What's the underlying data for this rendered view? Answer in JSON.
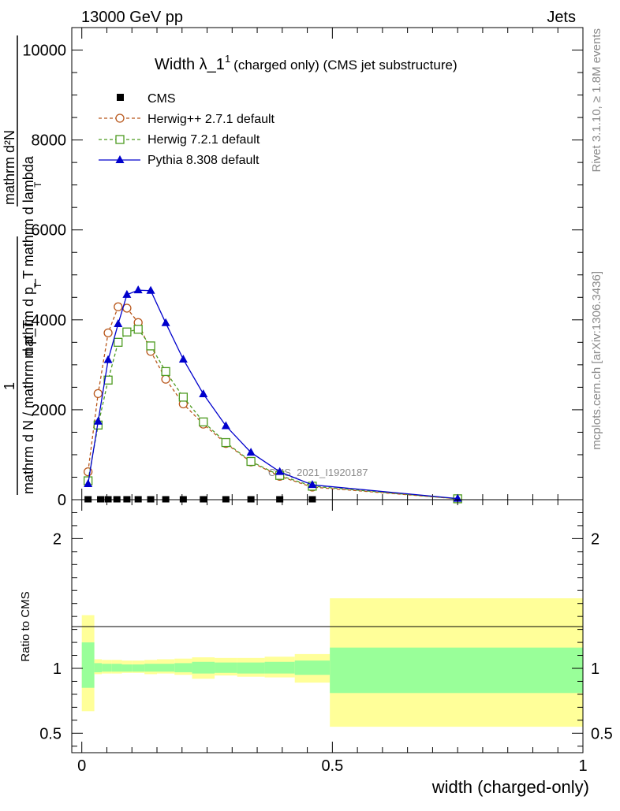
{
  "header": {
    "left": "13000 GeV pp",
    "right": "Jets",
    "side_top": "Rivet 3.1.10, ≥ 1.8M events",
    "side_bottom": "mcplots.cern.ch [arXiv:1306.3436]"
  },
  "watermark": "CMS_2021_I1920187",
  "chart_data": [
    {
      "type": "line",
      "title": "Width λ_1",
      "title_sup": "1",
      "subtitle": "(charged only) (CMS jet substructure)",
      "ylabel_lines": [
        "mathrm d²N",
        "mathrm d p_T mathrm d lambda",
        "1",
        "mathrm d N / mathrm d p_T"
      ],
      "ylabel_extra": [
        "T",
        "T"
      ],
      "xlim": [
        -0.02,
        1.0
      ],
      "ylim": [
        0,
        10500
      ],
      "yticks": [
        {
          "v": 0,
          "label": "0"
        },
        {
          "v": 2000,
          "label": "2000"
        },
        {
          "v": 4000,
          "label": "4000"
        },
        {
          "v": 6000,
          "label": "6000"
        },
        {
          "v": 8000,
          "label": "8000"
        },
        {
          "v": 10000,
          "label": "10000"
        }
      ],
      "legend": {
        "placement": "top-left",
        "entries": [
          {
            "name": "CMS",
            "color": "#000000",
            "marker": "square-filled"
          },
          {
            "name": "Herwig++ 2.7.1 default",
            "color": "#b8561a",
            "marker": "circle-open",
            "dash": true
          },
          {
            "name": "Herwig 7.2.1 default",
            "color": "#4c9a1f",
            "marker": "square-open",
            "dash": true
          },
          {
            "name": "Pythia 8.308 default",
            "color": "#0000cc",
            "marker": "triangle-filled",
            "dash": false
          }
        ]
      },
      "cms": {
        "x": [
          0.0125,
          0.0375,
          0.0525,
          0.07,
          0.09,
          0.1125,
          0.1375,
          0.1675,
          0.2025,
          0.2425,
          0.2875,
          0.3375,
          0.395,
          0.46
        ],
        "y": [
          0,
          0,
          0,
          0,
          0,
          0,
          0,
          0,
          0,
          0,
          0,
          0,
          0,
          0
        ]
      },
      "series": [
        {
          "name": "Herwig++ 2.7.1 default",
          "x": [
            0.0125,
            0.0325,
            0.0525,
            0.0725,
            0.09,
            0.1125,
            0.1375,
            0.1675,
            0.2025,
            0.2425,
            0.2875,
            0.3375,
            0.395,
            0.46,
            0.75
          ],
          "y": [
            620,
            2360,
            3710,
            4290,
            4260,
            3940,
            3300,
            2680,
            2130,
            1680,
            1250,
            840,
            520,
            280,
            20
          ]
        },
        {
          "name": "Herwig 7.2.1 default",
          "x": [
            0.0125,
            0.0325,
            0.0525,
            0.0725,
            0.09,
            0.1125,
            0.1375,
            0.1675,
            0.2025,
            0.2425,
            0.2875,
            0.3375,
            0.395,
            0.46,
            0.75
          ],
          "y": [
            420,
            1660,
            2660,
            3500,
            3730,
            3790,
            3420,
            2850,
            2280,
            1730,
            1270,
            850,
            540,
            300,
            20
          ]
        },
        {
          "name": "Pythia 8.308 default",
          "x": [
            0.0125,
            0.0325,
            0.0525,
            0.0725,
            0.09,
            0.1125,
            0.1375,
            0.1675,
            0.2025,
            0.2425,
            0.2875,
            0.3375,
            0.395,
            0.46,
            0.75
          ],
          "y": [
            350,
            1740,
            3110,
            3910,
            4560,
            4660,
            4650,
            3930,
            3120,
            2350,
            1640,
            1050,
            620,
            330,
            25
          ]
        }
      ]
    },
    {
      "type": "area",
      "ylabel": "Ratio to CMS",
      "xlabel": "width (charged-only)",
      "xlim": [
        -0.02,
        1.0
      ],
      "ylim": [
        0.35,
        2.3
      ],
      "yticks": [
        {
          "v": 0.5,
          "label": "0.5"
        },
        {
          "v": 1,
          "label": "1"
        },
        {
          "v": 2,
          "label": "2"
        }
      ],
      "xticks": [
        {
          "v": 0,
          "label": "0"
        },
        {
          "v": 0.5,
          "label": "0.5"
        },
        {
          "v": 1,
          "label": "1"
        }
      ],
      "colors": {
        "outer": "#ffff99",
        "inner": "#99ff99"
      },
      "bands": [
        {
          "x0": 0.0,
          "x1": 0.025,
          "outer": [
            0.67,
            1.41
          ],
          "inner": [
            0.85,
            1.2
          ]
        },
        {
          "x0": 0.025,
          "x1": 0.04,
          "outer": [
            0.955,
            1.07
          ],
          "inner": [
            0.97,
            1.04
          ]
        },
        {
          "x0": 0.04,
          "x1": 0.06,
          "outer": [
            0.96,
            1.065
          ],
          "inner": [
            0.975,
            1.035
          ]
        },
        {
          "x0": 0.06,
          "x1": 0.08,
          "outer": [
            0.96,
            1.065
          ],
          "inner": [
            0.975,
            1.035
          ]
        },
        {
          "x0": 0.08,
          "x1": 0.1,
          "outer": [
            0.965,
            1.06
          ],
          "inner": [
            0.975,
            1.03
          ]
        },
        {
          "x0": 0.1,
          "x1": 0.125,
          "outer": [
            0.965,
            1.06
          ],
          "inner": [
            0.975,
            1.03
          ]
        },
        {
          "x0": 0.125,
          "x1": 0.15,
          "outer": [
            0.955,
            1.065
          ],
          "inner": [
            0.975,
            1.035
          ]
        },
        {
          "x0": 0.15,
          "x1": 0.185,
          "outer": [
            0.96,
            1.07
          ],
          "inner": [
            0.975,
            1.035
          ]
        },
        {
          "x0": 0.185,
          "x1": 0.22,
          "outer": [
            0.95,
            1.075
          ],
          "inner": [
            0.97,
            1.04
          ]
        },
        {
          "x0": 0.22,
          "x1": 0.265,
          "outer": [
            0.92,
            1.085
          ],
          "inner": [
            0.96,
            1.05
          ]
        },
        {
          "x0": 0.265,
          "x1": 0.31,
          "outer": [
            0.945,
            1.08
          ],
          "inner": [
            0.965,
            1.045
          ]
        },
        {
          "x0": 0.31,
          "x1": 0.365,
          "outer": [
            0.935,
            1.08
          ],
          "inner": [
            0.96,
            1.045
          ]
        },
        {
          "x0": 0.365,
          "x1": 0.425,
          "outer": [
            0.93,
            1.09
          ],
          "inner": [
            0.96,
            1.05
          ]
        },
        {
          "x0": 0.425,
          "x1": 0.495,
          "outer": [
            0.89,
            1.11
          ],
          "inner": [
            0.95,
            1.06
          ]
        },
        {
          "x0": 0.495,
          "x1": 1.0,
          "outer": [
            0.55,
            1.54
          ],
          "inner": [
            0.81,
            1.16
          ]
        }
      ]
    }
  ]
}
